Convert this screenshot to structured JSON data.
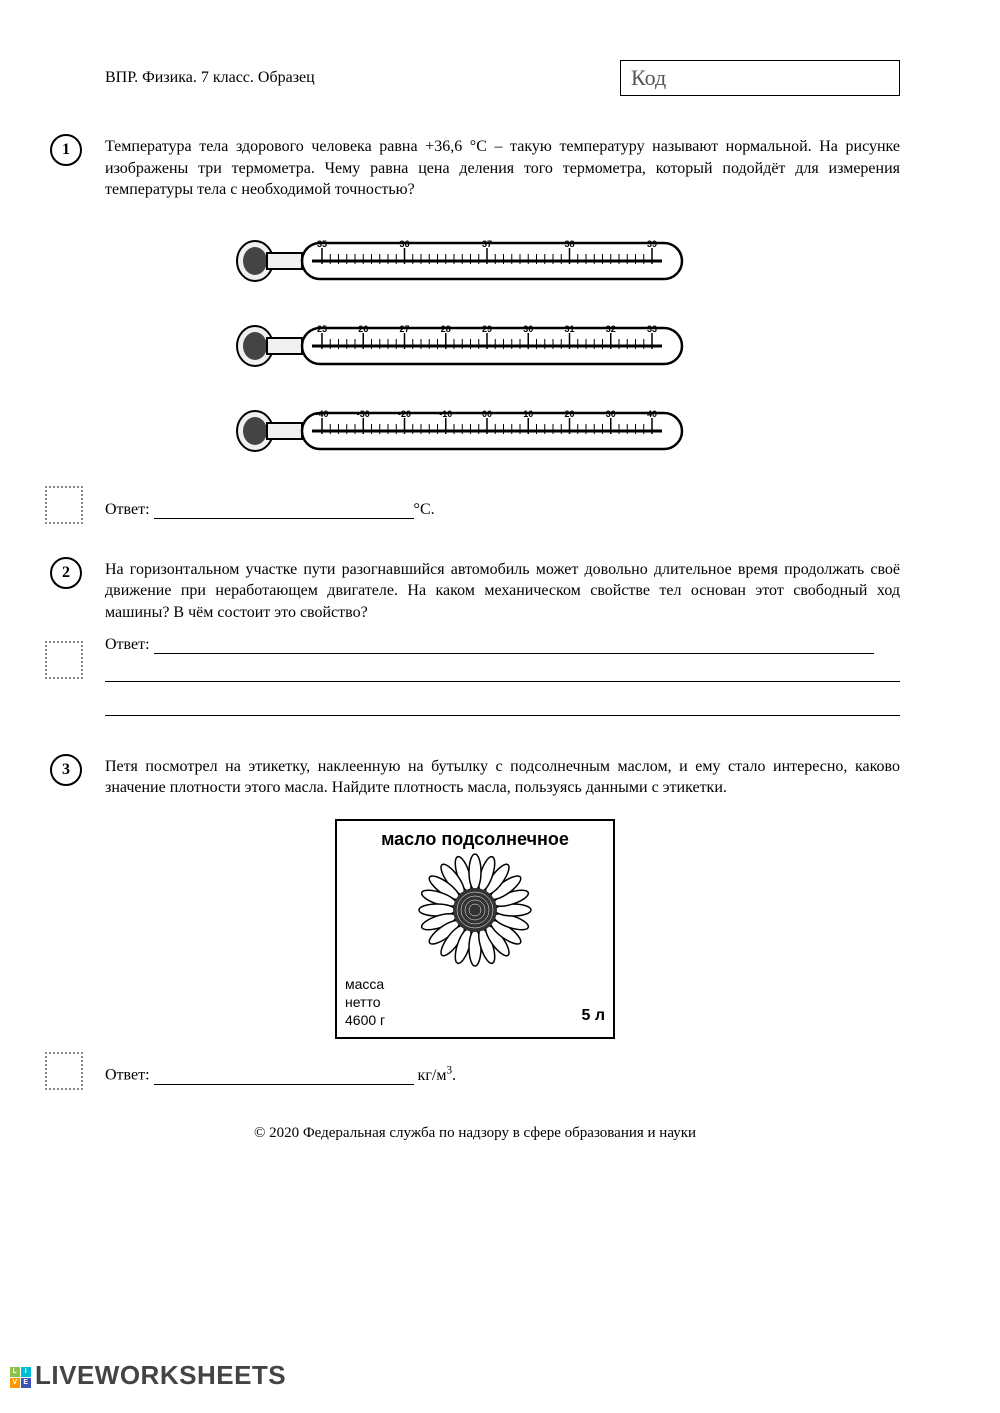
{
  "header": {
    "title": "ВПР. Физика. 7 класс. Образец",
    "code_label": "Код"
  },
  "questions": [
    {
      "number": "1",
      "text": "Температура тела здорового человека равна +36,6 °C – такую температуру называют нормальной. На рисунке изображены три термометра. Чему равна цена деления того термометра, который подойдёт для измерения температуры тела с необходимой точностью?",
      "answer_label": "Ответ: ",
      "answer_unit": "°C."
    },
    {
      "number": "2",
      "text": "На горизонтальном участке пути разогнавшийся автомобиль может довольно длительное время продолжать своё движение при неработающем двигателе. На каком механическом свойстве тел основан этот свободный ход машины? В чём состоит это свойство?",
      "answer_label": "Ответ: "
    },
    {
      "number": "3",
      "text": "Петя посмотрел на этикетку, наклеенную на бутылку с подсолнечным маслом, и ему стало интересно, каково значение плотности этого масла. Найдите плотность масла, пользуясь данными с этикетки.",
      "answer_label": "Ответ: ",
      "answer_unit_html": "кг/м"
    }
  ],
  "thermometers": [
    {
      "labels": [
        "35",
        "36",
        "37",
        "38",
        "39"
      ],
      "major": 5,
      "minor": 10
    },
    {
      "labels": [
        "25",
        "26",
        "27",
        "28",
        "29",
        "30",
        "31",
        "32",
        "33"
      ],
      "major": 9,
      "minor": 5
    },
    {
      "labels": [
        "-40",
        "-30",
        "-20",
        "-10",
        "00",
        "10",
        "20",
        "30",
        "40"
      ],
      "major": 9,
      "minor": 5
    }
  ],
  "oil_label": {
    "title": "масло подсолнечное",
    "mass_label": "масса",
    "netto_label": "нетто",
    "mass_value": "4600 г",
    "volume": "5 л"
  },
  "copyright": "© 2020 Федеральная служба по надзору в сфере образования и науки",
  "brand": "LIVEWORKSHEETS",
  "brand_colors": [
    "#8bc34a",
    "#00bcd4",
    "#ff9800",
    "#3f51b5"
  ],
  "brand_letters": [
    "L",
    "I",
    "V",
    "E"
  ]
}
